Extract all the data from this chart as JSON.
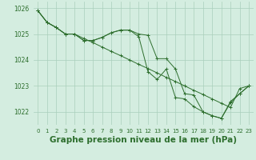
{
  "bg_color": "#d4ede0",
  "grid_color": "#aacfbb",
  "line_color": "#2d6e2d",
  "xlabel": "Graphe pression niveau de la mer (hPa)",
  "xlabel_fontsize": 7.5,
  "ylim": [
    1021.5,
    1026.25
  ],
  "xlim": [
    -0.5,
    23.5
  ],
  "yticks": [
    1022,
    1023,
    1024,
    1025,
    1026
  ],
  "xticks": [
    0,
    1,
    2,
    3,
    4,
    5,
    6,
    7,
    8,
    9,
    10,
    11,
    12,
    13,
    14,
    15,
    16,
    17,
    18,
    19,
    20,
    21,
    22,
    23
  ],
  "line1": [
    1025.9,
    1025.45,
    1025.25,
    1025.0,
    1025.0,
    1024.83,
    1024.67,
    1024.5,
    1024.33,
    1024.17,
    1024.0,
    1023.83,
    1023.67,
    1023.5,
    1023.33,
    1023.17,
    1023.0,
    1022.83,
    1022.67,
    1022.5,
    1022.33,
    1022.17,
    1022.9,
    1023.0
  ],
  "line2": [
    1025.9,
    1025.45,
    1025.25,
    1025.0,
    1025.0,
    1024.75,
    1024.75,
    1024.87,
    1025.05,
    1025.15,
    1025.15,
    1025.0,
    1024.95,
    1024.05,
    1024.05,
    1023.65,
    1022.7,
    1022.65,
    1022.0,
    1021.85,
    1021.75,
    1022.4,
    1022.7,
    1023.0
  ],
  "line3": [
    1025.9,
    1025.45,
    1025.25,
    1025.0,
    1025.0,
    1024.75,
    1024.75,
    1024.87,
    1025.05,
    1025.15,
    1025.15,
    1024.9,
    1023.55,
    1023.25,
    1023.65,
    1022.55,
    1022.5,
    1022.2,
    1022.0,
    1021.85,
    1021.75,
    1022.35,
    1022.7,
    1023.0
  ]
}
